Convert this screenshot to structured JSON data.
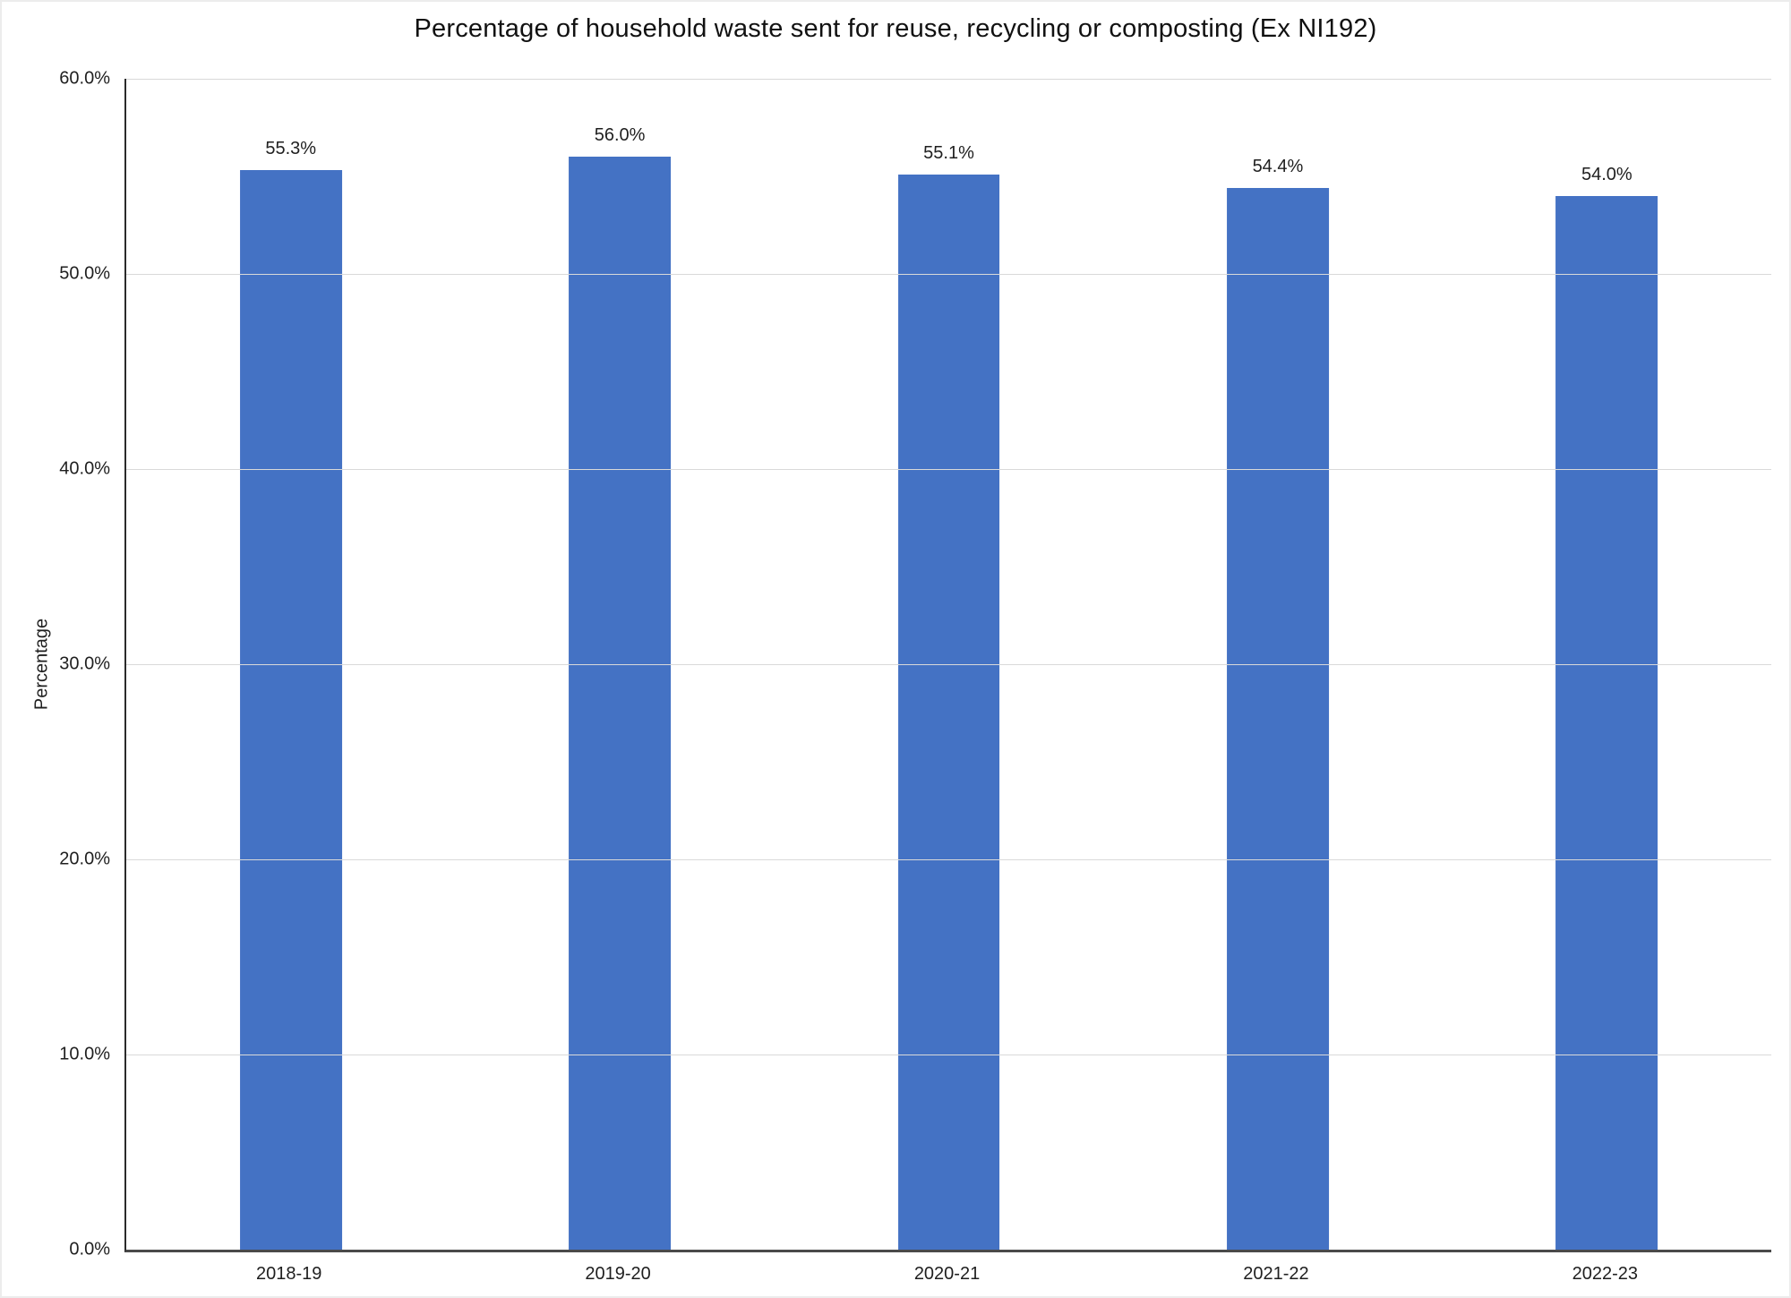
{
  "chart_data": {
    "type": "bar",
    "title": "Percentage of household waste sent for reuse, recycling or composting (Ex NI192)",
    "categories": [
      "2018-19",
      "2019-20",
      "2020-21",
      "2021-22",
      "2022-23"
    ],
    "values": [
      55.3,
      56.0,
      55.1,
      54.4,
      54.0
    ],
    "data_labels": [
      "55.3%",
      "56.0%",
      "55.1%",
      "54.4%",
      "54.0%"
    ],
    "xlabel": "",
    "ylabel": "Percentage",
    "ylim": [
      0,
      60
    ],
    "ytick_values": [
      0,
      10,
      20,
      30,
      40,
      50,
      60
    ],
    "ytick_labels": [
      "0.0%",
      "10.0%",
      "20.0%",
      "30.0%",
      "40.0%",
      "50.0%",
      "60.0%"
    ],
    "grid": true,
    "legend": false,
    "bar_color": "#4472C4",
    "gridline_color": "#d9d9d9",
    "axis_color": "#4a4a4a",
    "text_color": "#1f1f1f"
  }
}
